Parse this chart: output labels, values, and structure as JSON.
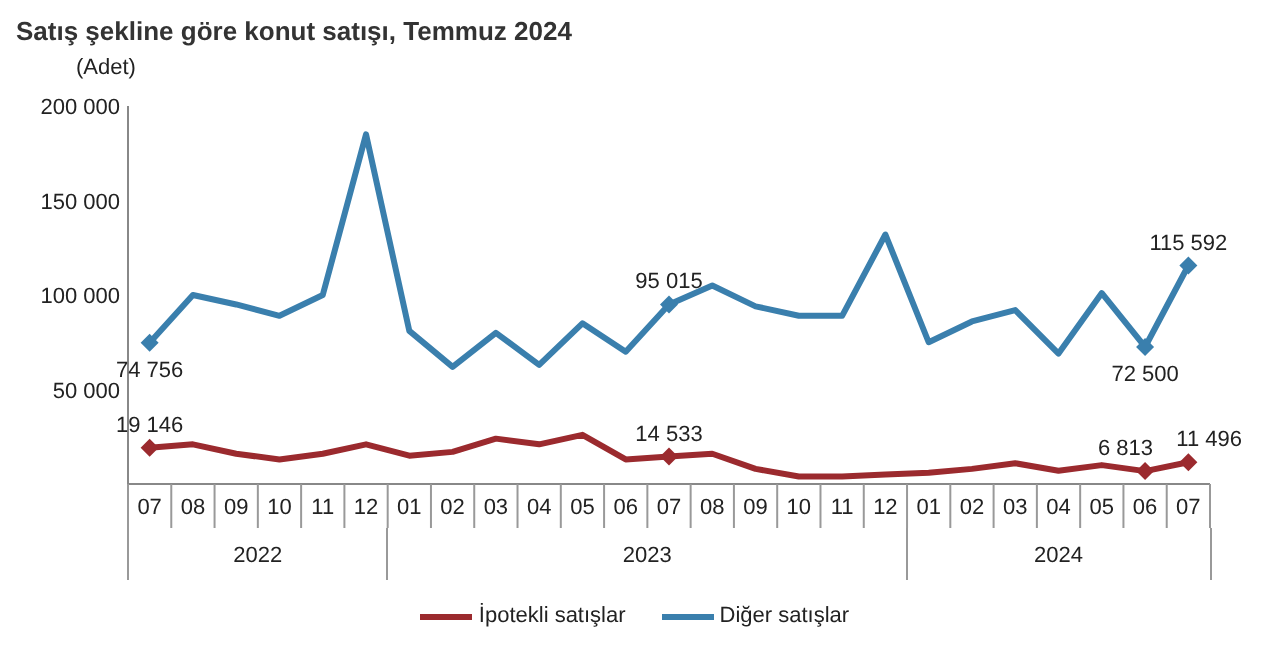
{
  "chart_data": {
    "type": "line",
    "title": "Satış şekline göre konut satışı, Temmuz 2024",
    "ylabel": "(Adet)",
    "categories": [
      "07",
      "08",
      "09",
      "10",
      "11",
      "12",
      "01",
      "02",
      "03",
      "04",
      "05",
      "06",
      "07",
      "08",
      "09",
      "10",
      "11",
      "12",
      "01",
      "02",
      "03",
      "04",
      "05",
      "06",
      "07"
    ],
    "annotations": [
      "2022",
      "2023",
      "2024"
    ],
    "series": [
      {
        "name": "İpotekli satışlar",
        "color": "#9b2a2e",
        "values": [
          19146,
          21000,
          16000,
          13000,
          16000,
          21000,
          15000,
          17000,
          24000,
          21000,
          26000,
          13000,
          14533,
          16000,
          8000,
          4000,
          4000,
          5000,
          6000,
          8000,
          11000,
          7000,
          10000,
          6813,
          11496
        ],
        "value_labels": [
          "19 146",
          null,
          null,
          null,
          null,
          null,
          null,
          null,
          null,
          null,
          null,
          null,
          "14 533",
          null,
          null,
          null,
          null,
          null,
          null,
          null,
          null,
          null,
          null,
          "6 813",
          "11 496"
        ]
      },
      {
        "name": "Diğer satışlar",
        "color": "#3a7fad",
        "values": [
          74756,
          100000,
          95000,
          89000,
          100000,
          185000,
          81000,
          62000,
          80000,
          63000,
          85000,
          70000,
          95015,
          105000,
          94000,
          89000,
          89000,
          132000,
          75000,
          86000,
          92000,
          69000,
          101000,
          72500,
          115592
        ],
        "value_labels": [
          "74 756",
          null,
          null,
          null,
          null,
          null,
          null,
          null,
          null,
          null,
          null,
          null,
          "95 015",
          null,
          null,
          null,
          null,
          null,
          null,
          null,
          null,
          null,
          null,
          "72 500",
          "115 592"
        ]
      }
    ],
    "ylim": [
      0,
      200000
    ],
    "yticks": [
      {
        "value": 50000,
        "label": "50 000"
      },
      {
        "value": 100000,
        "label": "100 000"
      },
      {
        "value": 150000,
        "label": "150 000"
      },
      {
        "value": 200000,
        "label": "200 000"
      }
    ],
    "grid": false,
    "legend": "bottom",
    "line_style": "solid"
  }
}
